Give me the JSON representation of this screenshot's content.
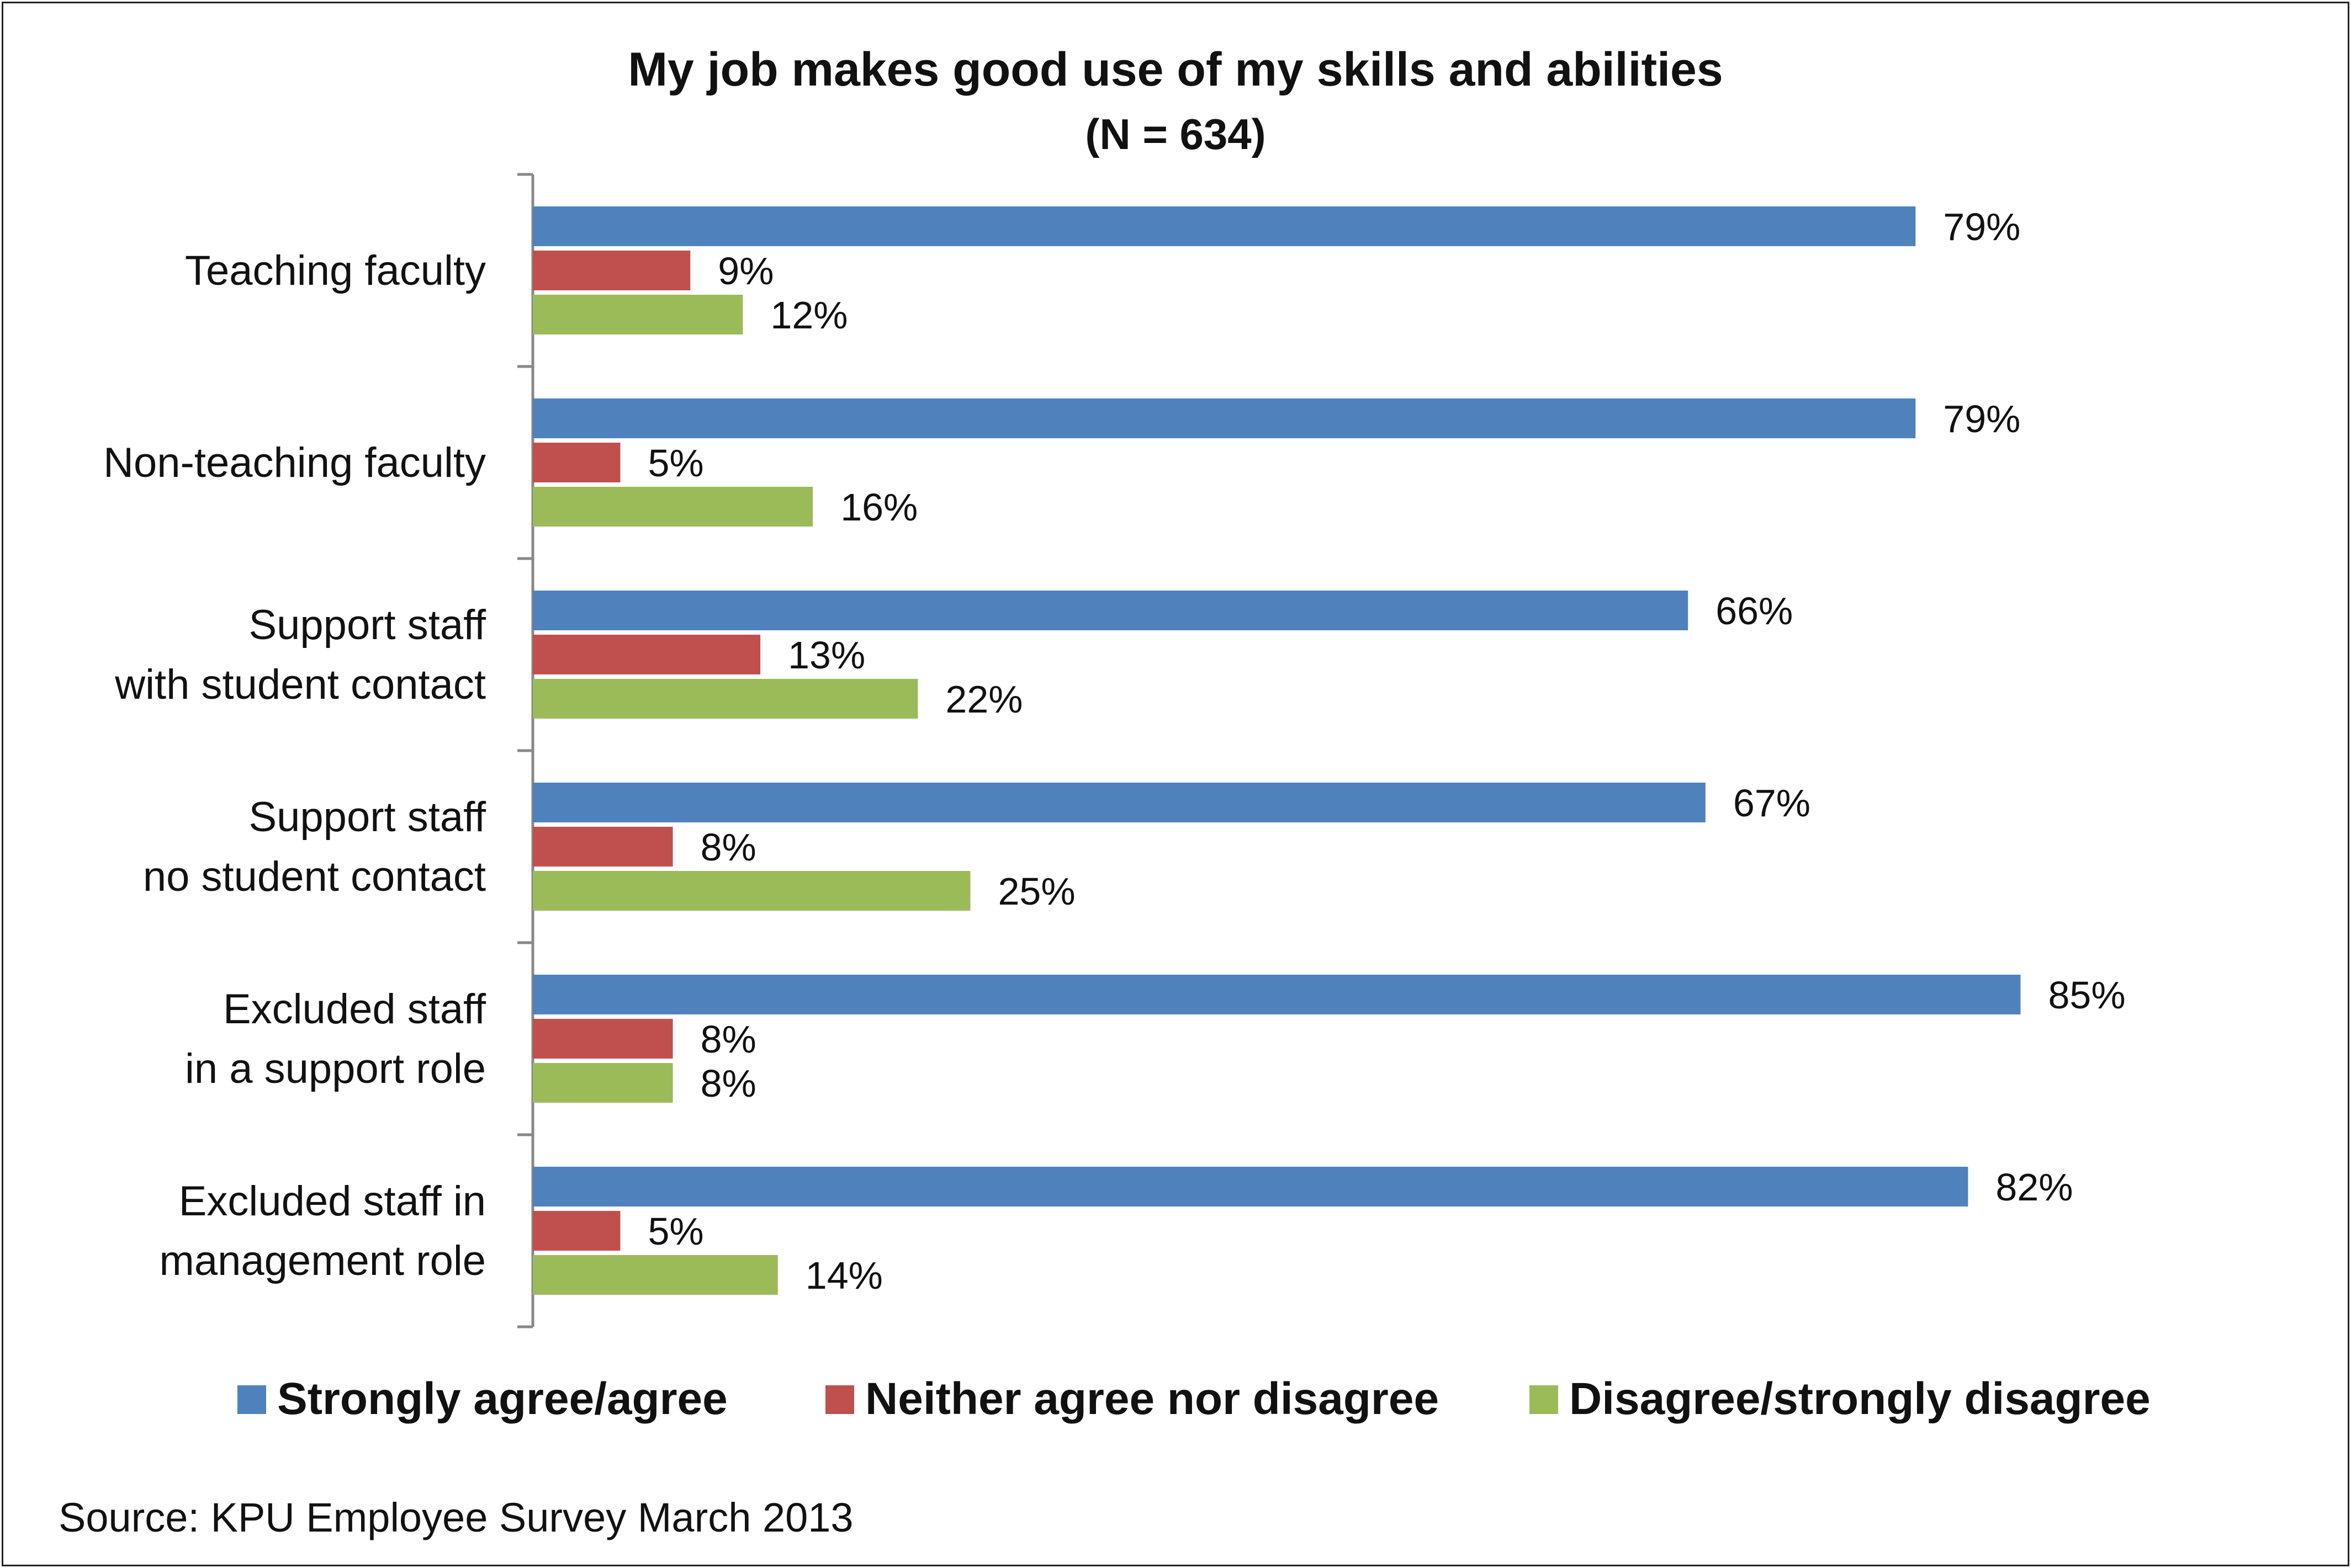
{
  "chart_data": {
    "type": "bar",
    "orientation": "horizontal",
    "title": "My job makes good use of my skills and abilities",
    "subtitle": "(N = 634)",
    "categories": [
      [
        "Teaching faculty"
      ],
      [
        "Non-teaching faculty"
      ],
      [
        "Support staff",
        "with student contact"
      ],
      [
        "Support staff",
        "no student contact"
      ],
      [
        "Excluded staff",
        "in a support role"
      ],
      [
        "Excluded staff in",
        "management role"
      ]
    ],
    "series": [
      {
        "name": "Strongly agree/agree",
        "color": "#4F81BD",
        "values": [
          79,
          79,
          66,
          67,
          85,
          82
        ]
      },
      {
        "name": "Neither agree nor disagree",
        "color": "#C0504D",
        "values": [
          9,
          5,
          13,
          8,
          8,
          5
        ]
      },
      {
        "name": "Disagree/strongly disagree",
        "color": "#9BBB59",
        "values": [
          12,
          16,
          22,
          25,
          8,
          14
        ]
      }
    ],
    "value_suffix": "%",
    "xlim": [
      0,
      100
    ],
    "xlabel": "",
    "ylabel": "",
    "grid": false,
    "legend_position": "bottom",
    "source": "Source: KPU Employee Survey March 2013"
  }
}
